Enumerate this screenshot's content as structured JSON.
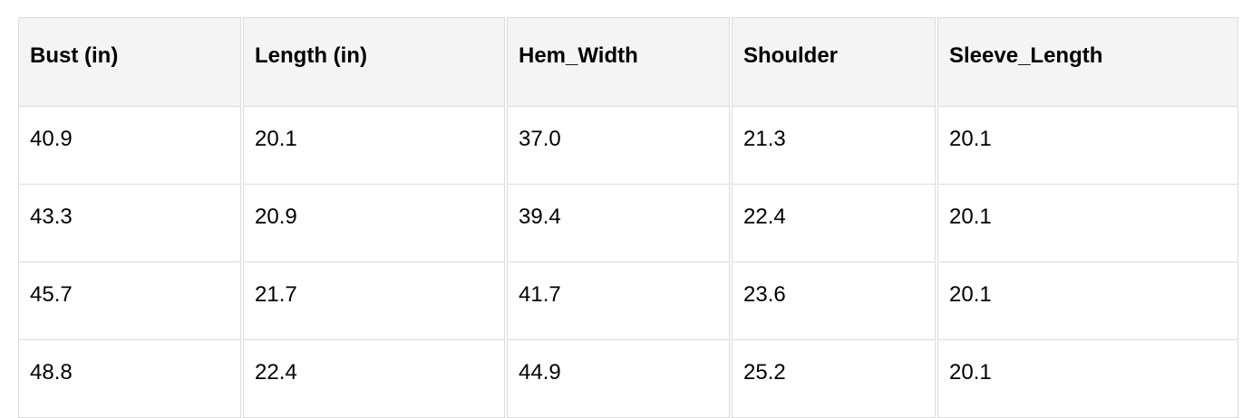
{
  "table": {
    "headers": [
      "Bust (in)",
      "Length (in)",
      "Hem_Width",
      "Shoulder",
      "Sleeve_Length"
    ],
    "rows": [
      [
        "40.9",
        "20.1",
        "37.0",
        "21.3",
        "20.1"
      ],
      [
        "43.3",
        "20.9",
        "39.4",
        "22.4",
        "20.1"
      ],
      [
        "45.7",
        "21.7",
        "41.7",
        "23.6",
        "20.1"
      ],
      [
        "48.8",
        "22.4",
        "44.9",
        "25.2",
        "20.1"
      ]
    ]
  }
}
